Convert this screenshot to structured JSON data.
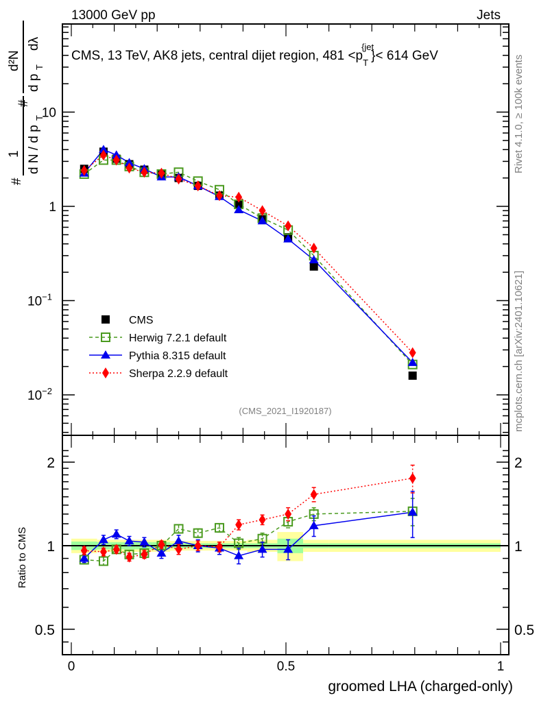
{
  "chart_data": [
    {
      "type": "scatter",
      "panel": "main",
      "title": "CMS, 13 TeV, AK8 jets, central dijet region, 481 <p_T^{jet}< 614 GeV",
      "top_left_label": "13000 GeV pp",
      "top_right_label": "Jets",
      "ylabel": "1/(dN/dp_T) d^2N/(dp_T dλ)",
      "ylabel_parts": {
        "num_hash": "#",
        "one": "1",
        "den_hash": "#",
        "dN_dpT": "d N / d p",
        "T": "T",
        "d2N": "d²N",
        "dpT": "d p",
        "dlambda": "dλ"
      },
      "yscale": "log",
      "ylim": [
        0.004,
        80
      ],
      "xlim": [
        -0.02,
        1.02
      ],
      "yticks": [
        {
          "value": 0.01,
          "label": "10",
          "exp": "−2"
        },
        {
          "value": 0.1,
          "label": "10",
          "exp": "−1"
        },
        {
          "value": 1,
          "label": "1",
          "exp": ""
        },
        {
          "value": 10,
          "label": "10",
          "exp": ""
        }
      ],
      "x": [
        0.03,
        0.075,
        0.105,
        0.135,
        0.17,
        0.21,
        0.25,
        0.295,
        0.345,
        0.39,
        0.445,
        0.505,
        0.565,
        0.795
      ],
      "series": [
        {
          "name": "CMS",
          "color": "#000000",
          "marker": "square-filled",
          "line": "none",
          "values": [
            2.5,
            3.8,
            3.2,
            2.8,
            2.45,
            2.2,
            2.0,
            1.65,
            1.3,
            1.05,
            0.73,
            0.47,
            0.23,
            0.016
          ]
        },
        {
          "name": "Herwig 7.2.1 default",
          "color": "#4a9a1f",
          "marker": "square-open",
          "line": "dashed",
          "values": [
            2.2,
            3.1,
            3.1,
            2.65,
            2.3,
            2.2,
            2.3,
            1.85,
            1.5,
            1.05,
            0.75,
            0.56,
            0.3,
            0.021
          ]
        },
        {
          "name": "Pythia 8.315 default",
          "color": "#0000ee",
          "marker": "triangle",
          "line": "solid",
          "values": [
            2.25,
            4.0,
            3.5,
            2.9,
            2.5,
            2.05,
            2.05,
            1.65,
            1.27,
            0.92,
            0.7,
            0.45,
            0.27,
            0.022
          ]
        },
        {
          "name": "Sherpa 2.2.9 default",
          "color": "#ff0000",
          "marker": "diamond",
          "line": "dotted",
          "values": [
            2.4,
            3.5,
            3.1,
            2.55,
            2.3,
            2.25,
            1.95,
            1.65,
            1.3,
            1.25,
            0.9,
            0.62,
            0.36,
            0.028
          ]
        }
      ],
      "legend_position": "bottom-left",
      "annotation": "(CMS_2021_I1920187)",
      "side_label_top": "Rivet 4.1.0, ≥ 100k events",
      "side_label_bottom": "mcplots.cern.ch [arXiv:2401.10621]"
    },
    {
      "type": "scatter",
      "panel": "ratio",
      "ylabel": "Ratio to CMS",
      "xlabel": "groomed LHA (charged-only)",
      "yscale": "log",
      "ylim": [
        0.42,
        2.35
      ],
      "yticks": [
        0.5,
        1,
        2
      ],
      "ytick_labels": [
        "0.5",
        "1",
        "2"
      ],
      "xticks": [
        0,
        0.5,
        1
      ],
      "xtick_labels": [
        "0",
        "0.5",
        "1"
      ],
      "bin_edges": [
        0.0,
        0.06,
        0.09,
        0.12,
        0.15,
        0.19,
        0.23,
        0.27,
        0.32,
        0.37,
        0.41,
        0.48,
        0.54,
        0.6,
        1.0
      ],
      "band_stat": [
        0.035,
        0.03,
        0.03,
        0.03,
        0.03,
        0.03,
        0.02,
        0.02,
        0.02,
        0.02,
        0.02,
        0.06,
        0.02,
        0.02
      ],
      "band_total": [
        0.06,
        0.05,
        0.05,
        0.05,
        0.05,
        0.05,
        0.04,
        0.04,
        0.04,
        0.04,
        0.05,
        0.12,
        0.05,
        0.05
      ],
      "band_colors": {
        "total": "#ffff9e",
        "stat": "#9eff9e"
      },
      "x": [
        0.03,
        0.075,
        0.105,
        0.135,
        0.17,
        0.21,
        0.25,
        0.295,
        0.345,
        0.39,
        0.445,
        0.505,
        0.565,
        0.795
      ],
      "series": [
        {
          "name": "Herwig 7.2.1 default",
          "color": "#4a9a1f",
          "values": [
            0.89,
            0.88,
            0.97,
            0.93,
            0.94,
            1.0,
            1.15,
            1.11,
            1.16,
            1.02,
            1.06,
            1.22,
            1.3,
            1.33
          ],
          "err": [
            0.03,
            0.03,
            0.03,
            0.03,
            0.03,
            0.03,
            0.04,
            0.04,
            0.04,
            0.05,
            0.05,
            0.06,
            0.07,
            0.15
          ]
        },
        {
          "name": "Pythia 8.315 default",
          "color": "#0000ee",
          "values": [
            0.9,
            1.05,
            1.1,
            1.04,
            1.03,
            0.94,
            1.04,
            1.0,
            0.98,
            0.92,
            0.97,
            0.97,
            1.18,
            1.32
          ],
          "err": [
            0.03,
            0.04,
            0.04,
            0.04,
            0.04,
            0.04,
            0.05,
            0.05,
            0.05,
            0.06,
            0.06,
            0.08,
            0.1,
            0.25
          ]
        },
        {
          "name": "Sherpa 2.2.9 default",
          "color": "#ff0000",
          "values": [
            0.96,
            0.95,
            0.97,
            0.91,
            0.93,
            1.01,
            0.97,
            1.0,
            0.99,
            1.19,
            1.24,
            1.3,
            1.53,
            1.75
          ],
          "err": [
            0.03,
            0.03,
            0.03,
            0.03,
            0.03,
            0.03,
            0.04,
            0.04,
            0.04,
            0.05,
            0.05,
            0.07,
            0.09,
            0.2
          ]
        }
      ]
    }
  ]
}
